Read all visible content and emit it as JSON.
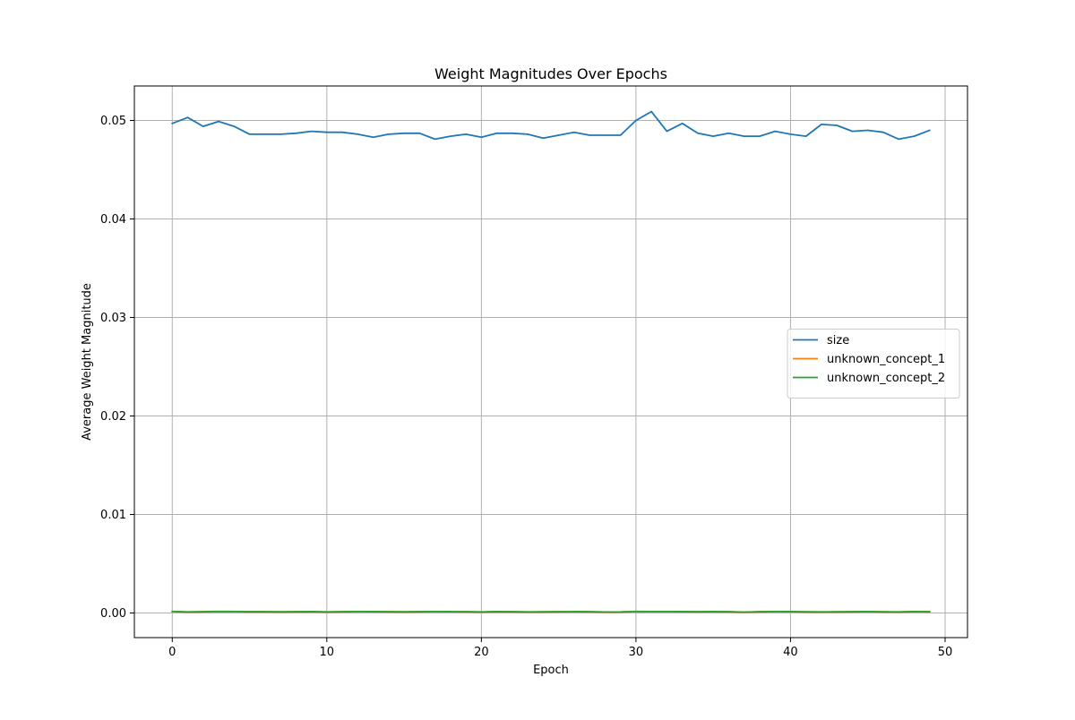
{
  "chart_data": {
    "type": "line",
    "title": "Weight Magnitudes Over Epochs",
    "xlabel": "Epoch",
    "ylabel": "Average Weight Magnitude",
    "xlim": [
      -2.45,
      51.45
    ],
    "ylim": [
      -0.0025,
      0.0535
    ],
    "xticks": [
      0,
      10,
      20,
      30,
      40,
      50
    ],
    "yticks": [
      0.0,
      0.01,
      0.02,
      0.03,
      0.04,
      0.05
    ],
    "xtick_labels": [
      "0",
      "10",
      "20",
      "30",
      "40",
      "50"
    ],
    "ytick_labels": [
      "0.00",
      "0.01",
      "0.02",
      "0.03",
      "0.04",
      "0.05"
    ],
    "grid": true,
    "legend_position": "center-right",
    "x": [
      0,
      1,
      2,
      3,
      4,
      5,
      6,
      7,
      8,
      9,
      10,
      11,
      12,
      13,
      14,
      15,
      16,
      17,
      18,
      19,
      20,
      21,
      22,
      23,
      24,
      25,
      26,
      27,
      28,
      29,
      30,
      31,
      32,
      33,
      34,
      35,
      36,
      37,
      38,
      39,
      40,
      41,
      42,
      43,
      44,
      45,
      46,
      47,
      48,
      49
    ],
    "series": [
      {
        "name": "size",
        "color": "#1f77b4",
        "values": [
          0.0497,
          0.0503,
          0.0494,
          0.0499,
          0.0494,
          0.0486,
          0.0486,
          0.0486,
          0.0487,
          0.0489,
          0.0488,
          0.0488,
          0.0486,
          0.0483,
          0.0486,
          0.0487,
          0.0487,
          0.0481,
          0.0484,
          0.0486,
          0.0483,
          0.0487,
          0.0487,
          0.0486,
          0.0482,
          0.0485,
          0.0488,
          0.0485,
          0.0485,
          0.0485,
          0.05,
          0.0509,
          0.0489,
          0.0497,
          0.0487,
          0.0484,
          0.0487,
          0.0484,
          0.0484,
          0.0489,
          0.0486,
          0.0484,
          0.0496,
          0.0495,
          0.0489,
          0.049,
          0.0488,
          0.0481,
          0.0484,
          0.049
        ]
      },
      {
        "name": "unknown_concept_1",
        "color": "#ff7f0e",
        "values": [
          0.00015,
          0.0001,
          0.00012,
          0.00015,
          0.00014,
          0.00012,
          0.00012,
          0.00011,
          0.00012,
          0.00013,
          0.0001,
          0.00012,
          0.00014,
          0.00013,
          0.00012,
          0.00011,
          0.00012,
          0.00014,
          0.00013,
          0.00012,
          0.0001,
          0.00013,
          0.00012,
          0.0001,
          0.00011,
          0.00012,
          0.00013,
          0.00012,
          9e-05,
          0.0001,
          0.00015,
          0.00014,
          0.00014,
          0.00013,
          0.00012,
          0.00013,
          0.00012,
          8e-05,
          0.00012,
          0.00014,
          0.00013,
          0.00011,
          0.0001,
          0.00011,
          0.00012,
          0.00014,
          0.00011,
          0.0001,
          0.00014,
          0.00012
        ]
      },
      {
        "name": "unknown_concept_2",
        "color": "#2ca02c",
        "values": [
          0.00016,
          0.00011,
          0.00013,
          0.00016,
          0.00015,
          0.00013,
          0.00013,
          0.00012,
          0.00013,
          0.00014,
          0.00011,
          0.00013,
          0.00015,
          0.00014,
          0.00013,
          0.00012,
          0.00013,
          0.00015,
          0.00014,
          0.00013,
          0.00011,
          0.00014,
          0.00013,
          0.00011,
          0.00012,
          0.00013,
          0.00014,
          0.00013,
          0.0001,
          0.00011,
          0.00016,
          0.00015,
          0.00015,
          0.00014,
          0.00013,
          0.00014,
          0.00013,
          9e-05,
          0.00013,
          0.00015,
          0.00014,
          0.00012,
          0.00011,
          0.00012,
          0.00013,
          0.00015,
          0.00012,
          0.00011,
          0.00015,
          0.00013
        ]
      }
    ]
  }
}
